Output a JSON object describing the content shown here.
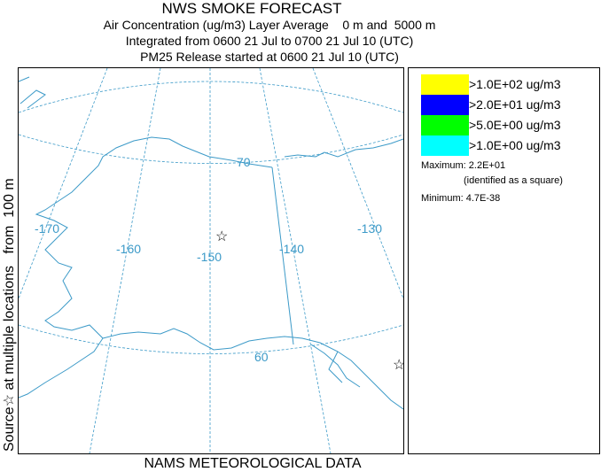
{
  "header": {
    "title": "NWS SMOKE FORECAST",
    "line1": "Air Concentration (ug/m3) Layer Average    0 m and  5000 m",
    "line2": "Integrated from 0600 21 Jul to 0700 21 Jul 10 (UTC)",
    "line3": "PM25 Release started at 0600 21 Jul 10 (UTC)"
  },
  "side_label": "Source☆ at multiple locations   from  100 m",
  "footer": "NAMS METEOROLOGICAL DATA",
  "map": {
    "longitude_labels": [
      "-170",
      "-160",
      "-150",
      "-140",
      "-130"
    ],
    "latitude_labels": [
      "70",
      "60"
    ],
    "line_color": "#3c9ac8",
    "source_markers": [
      "star",
      "star"
    ]
  },
  "legend": {
    "items": [
      {
        "label": ">1.0E+02 ug/m3",
        "color": "#ffff00"
      },
      {
        "label": ">2.0E+01 ug/m3",
        "color": "#0000ff"
      },
      {
        "label": ">5.0E+00 ug/m3",
        "color": "#00ff00"
      },
      {
        "label": ">1.0E+00 ug/m3",
        "color": "#00ffff"
      }
    ],
    "maximum": "Maximum: 2.2E+01",
    "maximum_note": "(identified as a square)",
    "minimum": "Minimum: 4.7E-38"
  }
}
